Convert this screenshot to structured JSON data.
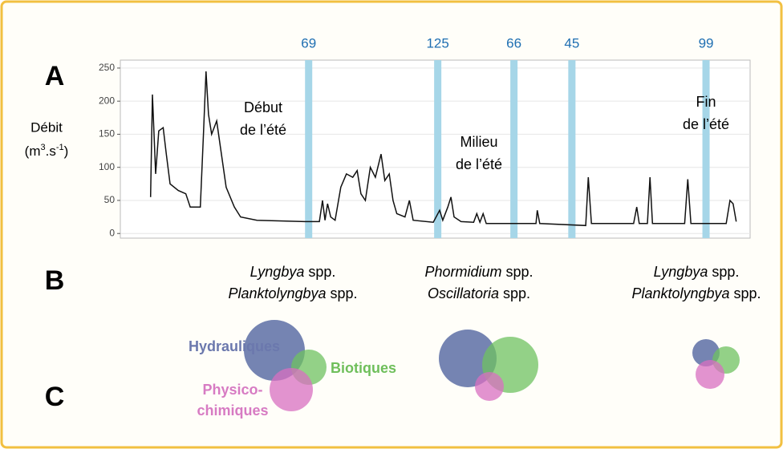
{
  "panels": [
    "A",
    "B",
    "C"
  ],
  "chart_data": {
    "type": "line",
    "y_label": "Débit",
    "y_unit": [
      "(m",
      "3",
      ".s",
      "-1",
      ")"
    ],
    "xlim": [
      0,
      100
    ],
    "ylim": [
      -7,
      262
    ],
    "yticks": [
      0,
      50,
      100,
      150,
      200,
      250
    ],
    "grid": true,
    "color": "#111111",
    "x": [
      4.8,
      5.1,
      5.6,
      6.1,
      6.8,
      7.3,
      7.9,
      9.2,
      10.4,
      11.1,
      12.7,
      13.2,
      13.6,
      14.0,
      14.5,
      15.3,
      15.9,
      16.8,
      18.1,
      19.1,
      21.7,
      29.3,
      31.6,
      32.1,
      32.5,
      32.9,
      33.4,
      34.1,
      35.0,
      35.9,
      36.9,
      37.6,
      38.2,
      38.9,
      39.7,
      40.5,
      41.4,
      42.0,
      42.7,
      43.3,
      43.9,
      45.2,
      45.9,
      46.5,
      49.7,
      50.7,
      51.2,
      52.0,
      52.5,
      53.0,
      54.1,
      56.1,
      56.6,
      57.1,
      57.6,
      58.1,
      62.4,
      66.0,
      66.2,
      66.6,
      73.9,
      74.3,
      74.8,
      81.5,
      82.0,
      82.4,
      83.7,
      84.1,
      84.5,
      89.6,
      90.1,
      90.6,
      96.2,
      96.8,
      97.3,
      97.8
    ],
    "values": [
      55,
      210,
      90,
      155,
      160,
      120,
      75,
      65,
      60,
      40,
      40,
      150,
      245,
      180,
      150,
      170,
      130,
      70,
      40,
      25,
      20,
      18,
      18,
      50,
      20,
      45,
      25,
      20,
      70,
      90,
      85,
      95,
      60,
      50,
      100,
      85,
      120,
      80,
      90,
      50,
      30,
      25,
      50,
      20,
      17,
      35,
      20,
      40,
      55,
      25,
      18,
      17,
      30,
      17,
      30,
      15,
      15,
      15,
      35,
      15,
      12,
      85,
      15,
      15,
      40,
      15,
      15,
      85,
      15,
      15,
      82,
      15,
      15,
      50,
      45,
      18
    ],
    "bands": {
      "color": "#a6d6e8",
      "label_color": "#1f6fb2",
      "x": [
        29.9,
        50.4,
        62.5,
        71.7,
        93.0
      ],
      "values": [
        69,
        125,
        66,
        45,
        99
      ]
    },
    "annotations": [
      [
        "Début",
        "de l’été"
      ],
      [
        "Milieu",
        "de l’été"
      ],
      [
        "Fin",
        "de l’été"
      ]
    ]
  },
  "taxa": [
    [
      [
        "Lyngbya",
        " spp."
      ],
      [
        "Planktolyngbya",
        " spp."
      ]
    ],
    [
      [
        "Phormidium",
        " spp."
      ],
      [
        "Oscillatoria",
        " spp."
      ]
    ],
    [
      [
        "Lyngbya",
        " spp."
      ],
      [
        "Planktolyngbya",
        " spp."
      ]
    ]
  ],
  "factors": {
    "hydraulic": "Hydrauliques",
    "biotic": "Biotiques",
    "physico": [
      "Physico-",
      "chimiques"
    ]
  }
}
